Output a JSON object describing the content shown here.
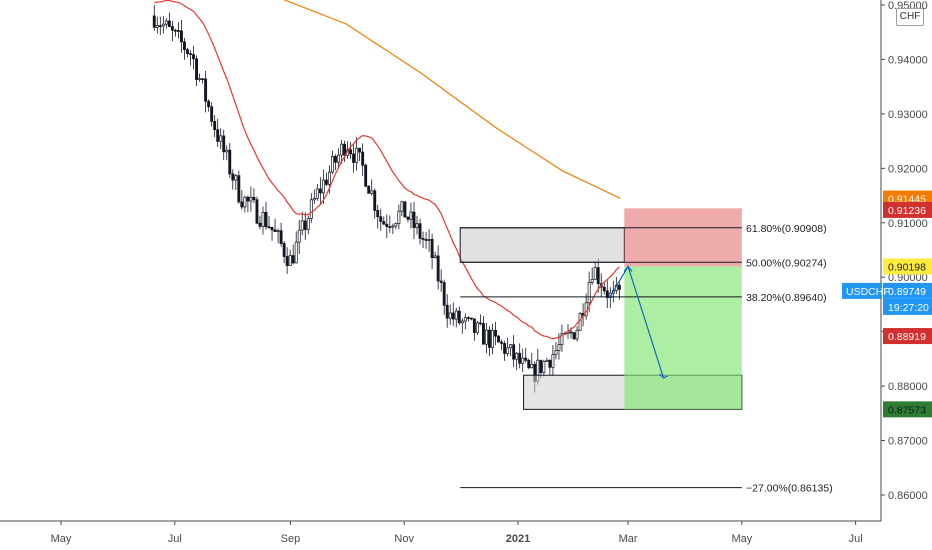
{
  "axis": {
    "currency": "CHF",
    "price_ticks": [
      "0.95000",
      "0.94000",
      "0.93000",
      "0.92000",
      "0.91000",
      "0.90000",
      "0.89000",
      "0.88000",
      "0.87000",
      "0.86000"
    ],
    "months": [
      "May",
      "Jul",
      "Sep",
      "Nov",
      "2021",
      "Mar",
      "May",
      "Jul"
    ]
  },
  "tags": {
    "sma200": {
      "text": "0.91445",
      "color": "#f57c00",
      "value": 0.91445
    },
    "stop": {
      "text": "0.91236",
      "color": "#d32f2f",
      "value": 0.91236
    },
    "entry": {
      "text": "0.90198",
      "color": "#ffeb3b",
      "value": 0.90198
    },
    "symbol": {
      "text": "USDCHF",
      "color": "#2196f3"
    },
    "last": {
      "text": "0.89749",
      "color": "#2196f3",
      "value": 0.89749
    },
    "countdown": {
      "text": "19:27:20",
      "color": "#2196f3"
    },
    "sma50": {
      "text": "0.88919",
      "color": "#d32f2f",
      "value": 0.88919
    },
    "target": {
      "text": "0.87573",
      "color": "#2e7d32",
      "value": 0.87573
    }
  },
  "fib": [
    {
      "label": "61.80%(0.90908)",
      "price": 0.90908
    },
    {
      "label": "50.00%(0.90274)",
      "price": 0.90274
    },
    {
      "label": "38.20%(0.89640)",
      "price": 0.8964
    },
    {
      "label": "−27.00%(0.86135)",
      "price": 0.86135
    }
  ],
  "chart_data": {
    "type": "candlestick",
    "symbol": "USDCHF",
    "ylim": [
      0.8535,
      0.9555
    ],
    "yticks": [
      0.95,
      0.94,
      0.93,
      0.92,
      0.91,
      0.9,
      0.89,
      0.88,
      0.87,
      0.86
    ],
    "xticks": [
      "May",
      "Jul",
      "Sep",
      "Nov",
      "2021",
      "Mar",
      "May",
      "Jul"
    ],
    "approx_path": [
      [
        "2020-06-20",
        0.948
      ],
      [
        "2020-07-10",
        0.941
      ],
      [
        "2020-07-25",
        0.925
      ],
      [
        "2020-08-05",
        0.915
      ],
      [
        "2020-08-20",
        0.91
      ],
      [
        "2020-09-01",
        0.903
      ],
      [
        "2020-09-15",
        0.915
      ],
      [
        "2020-10-01",
        0.925
      ],
      [
        "2020-10-10",
        0.92
      ],
      [
        "2020-10-20",
        0.91
      ],
      [
        "2020-11-01",
        0.912
      ],
      [
        "2020-11-15",
        0.905
      ],
      [
        "2020-11-25",
        0.893
      ],
      [
        "2020-12-10",
        0.89
      ],
      [
        "2020-12-25",
        0.887
      ],
      [
        "2021-01-08",
        0.882
      ],
      [
        "2021-01-20",
        0.886
      ],
      [
        "2021-02-02",
        0.891
      ],
      [
        "2021-02-10",
        0.902
      ],
      [
        "2021-02-20",
        0.896
      ],
      [
        "2021-02-25",
        0.897
      ]
    ],
    "sma50_last": 0.88919,
    "sma200_last": 0.91445,
    "last_price": 0.89749,
    "trade": {
      "entry": 0.90198,
      "stop": 0.91236,
      "target": 0.87573
    },
    "demand_zone": [
      0.87573,
      0.882
    ],
    "supply_zone": [
      0.90274,
      0.90908
    ],
    "fib_levels": [
      {
        "ratio": "61.80%",
        "price": 0.90908
      },
      {
        "ratio": "50.00%",
        "price": 0.90274
      },
      {
        "ratio": "38.20%",
        "price": 0.8964
      },
      {
        "ratio": "−27.00%",
        "price": 0.86135
      }
    ]
  }
}
